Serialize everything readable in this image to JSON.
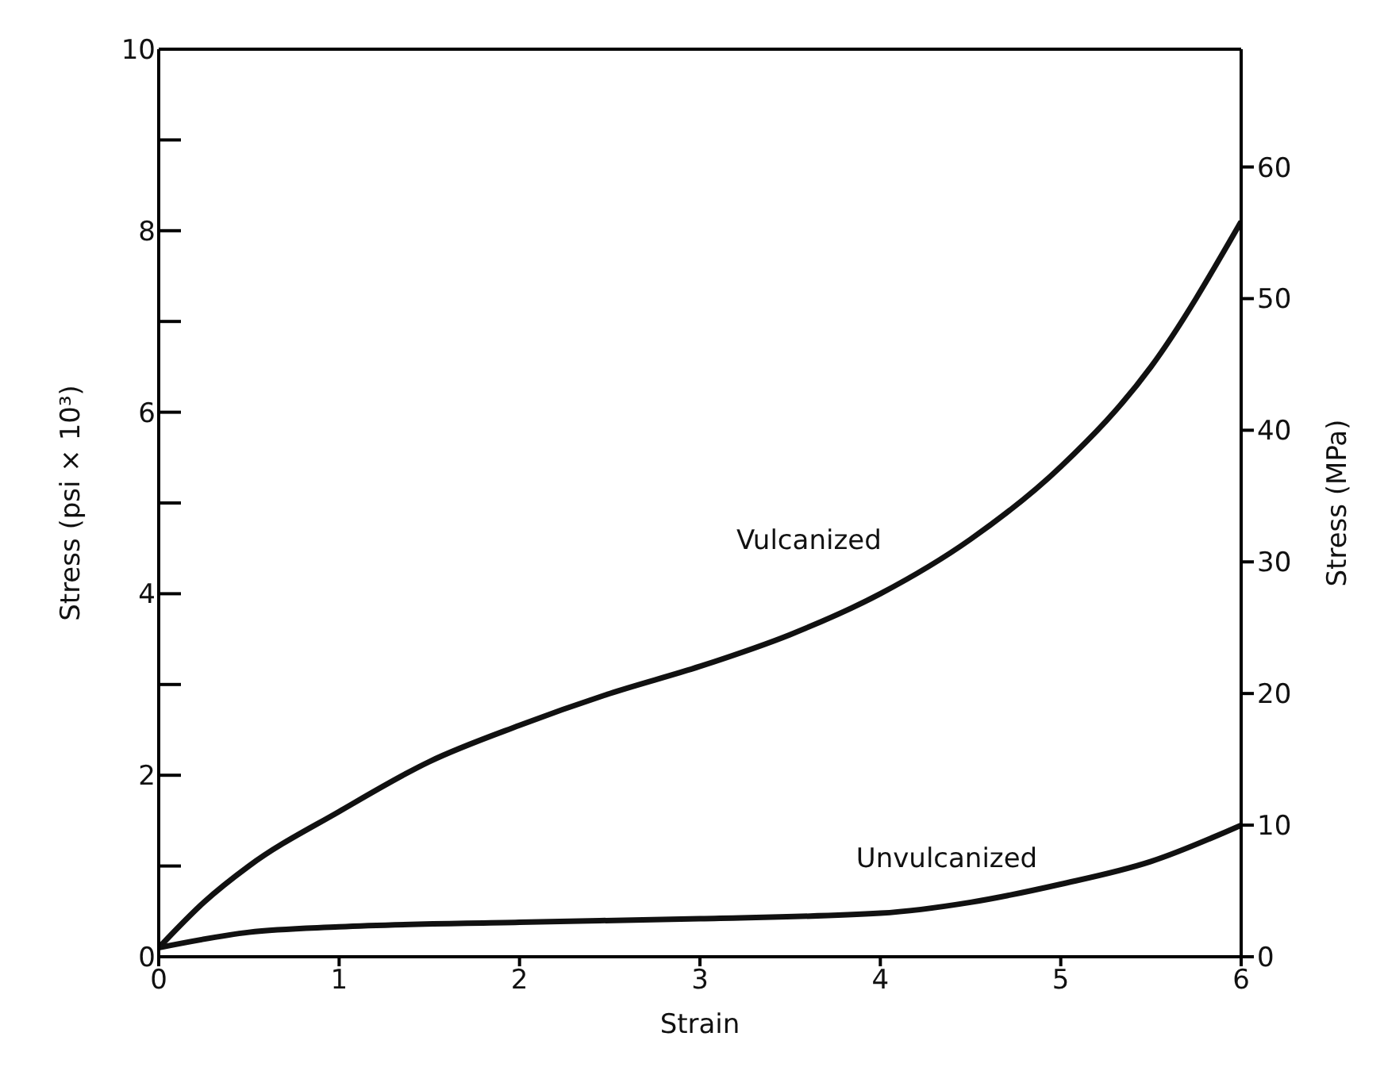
{
  "chart_data": {
    "type": "line",
    "xlabel": "Strain",
    "ylabel": "Stress (psi × 10³)",
    "y2label": "Stress (MPa)",
    "xlim": [
      0,
      6
    ],
    "xticks": [
      0,
      1,
      2,
      3,
      4,
      5,
      6
    ],
    "ylim": [
      0,
      10
    ],
    "yticks": [
      0,
      {
        "value": 1,
        "label": null
      },
      2,
      {
        "value": 3,
        "label": null
      },
      4,
      {
        "value": 5,
        "label": null
      },
      6,
      {
        "value": 7,
        "label": null
      },
      8,
      {
        "value": 9,
        "label": null
      },
      10
    ],
    "y2lim": [
      0,
      68.95
    ],
    "y2ticks": [
      0,
      10,
      20,
      30,
      40,
      50,
      60
    ],
    "marker": "none",
    "line_style": "solid",
    "series": [
      {
        "name": "Vulcanized",
        "color": "#111111",
        "x": [
          0,
          0.25,
          0.5,
          1,
          1.5,
          2,
          2.5,
          3,
          3.5,
          4,
          4.5,
          5,
          5.5,
          6
        ],
        "values": [
          0.1,
          0.6,
          1.0,
          1.6,
          2.15,
          2.55,
          2.9,
          3.2,
          3.55,
          4.0,
          4.6,
          5.4,
          6.5,
          8.1
        ]
      },
      {
        "name": "Unvulcanized",
        "color": "#111111",
        "x": [
          0,
          0.5,
          1,
          2,
          3,
          4,
          4.5,
          5,
          5.5,
          6
        ],
        "values": [
          0.1,
          0.27,
          0.33,
          0.38,
          0.42,
          0.48,
          0.6,
          0.8,
          1.05,
          1.45
        ]
      }
    ]
  }
}
